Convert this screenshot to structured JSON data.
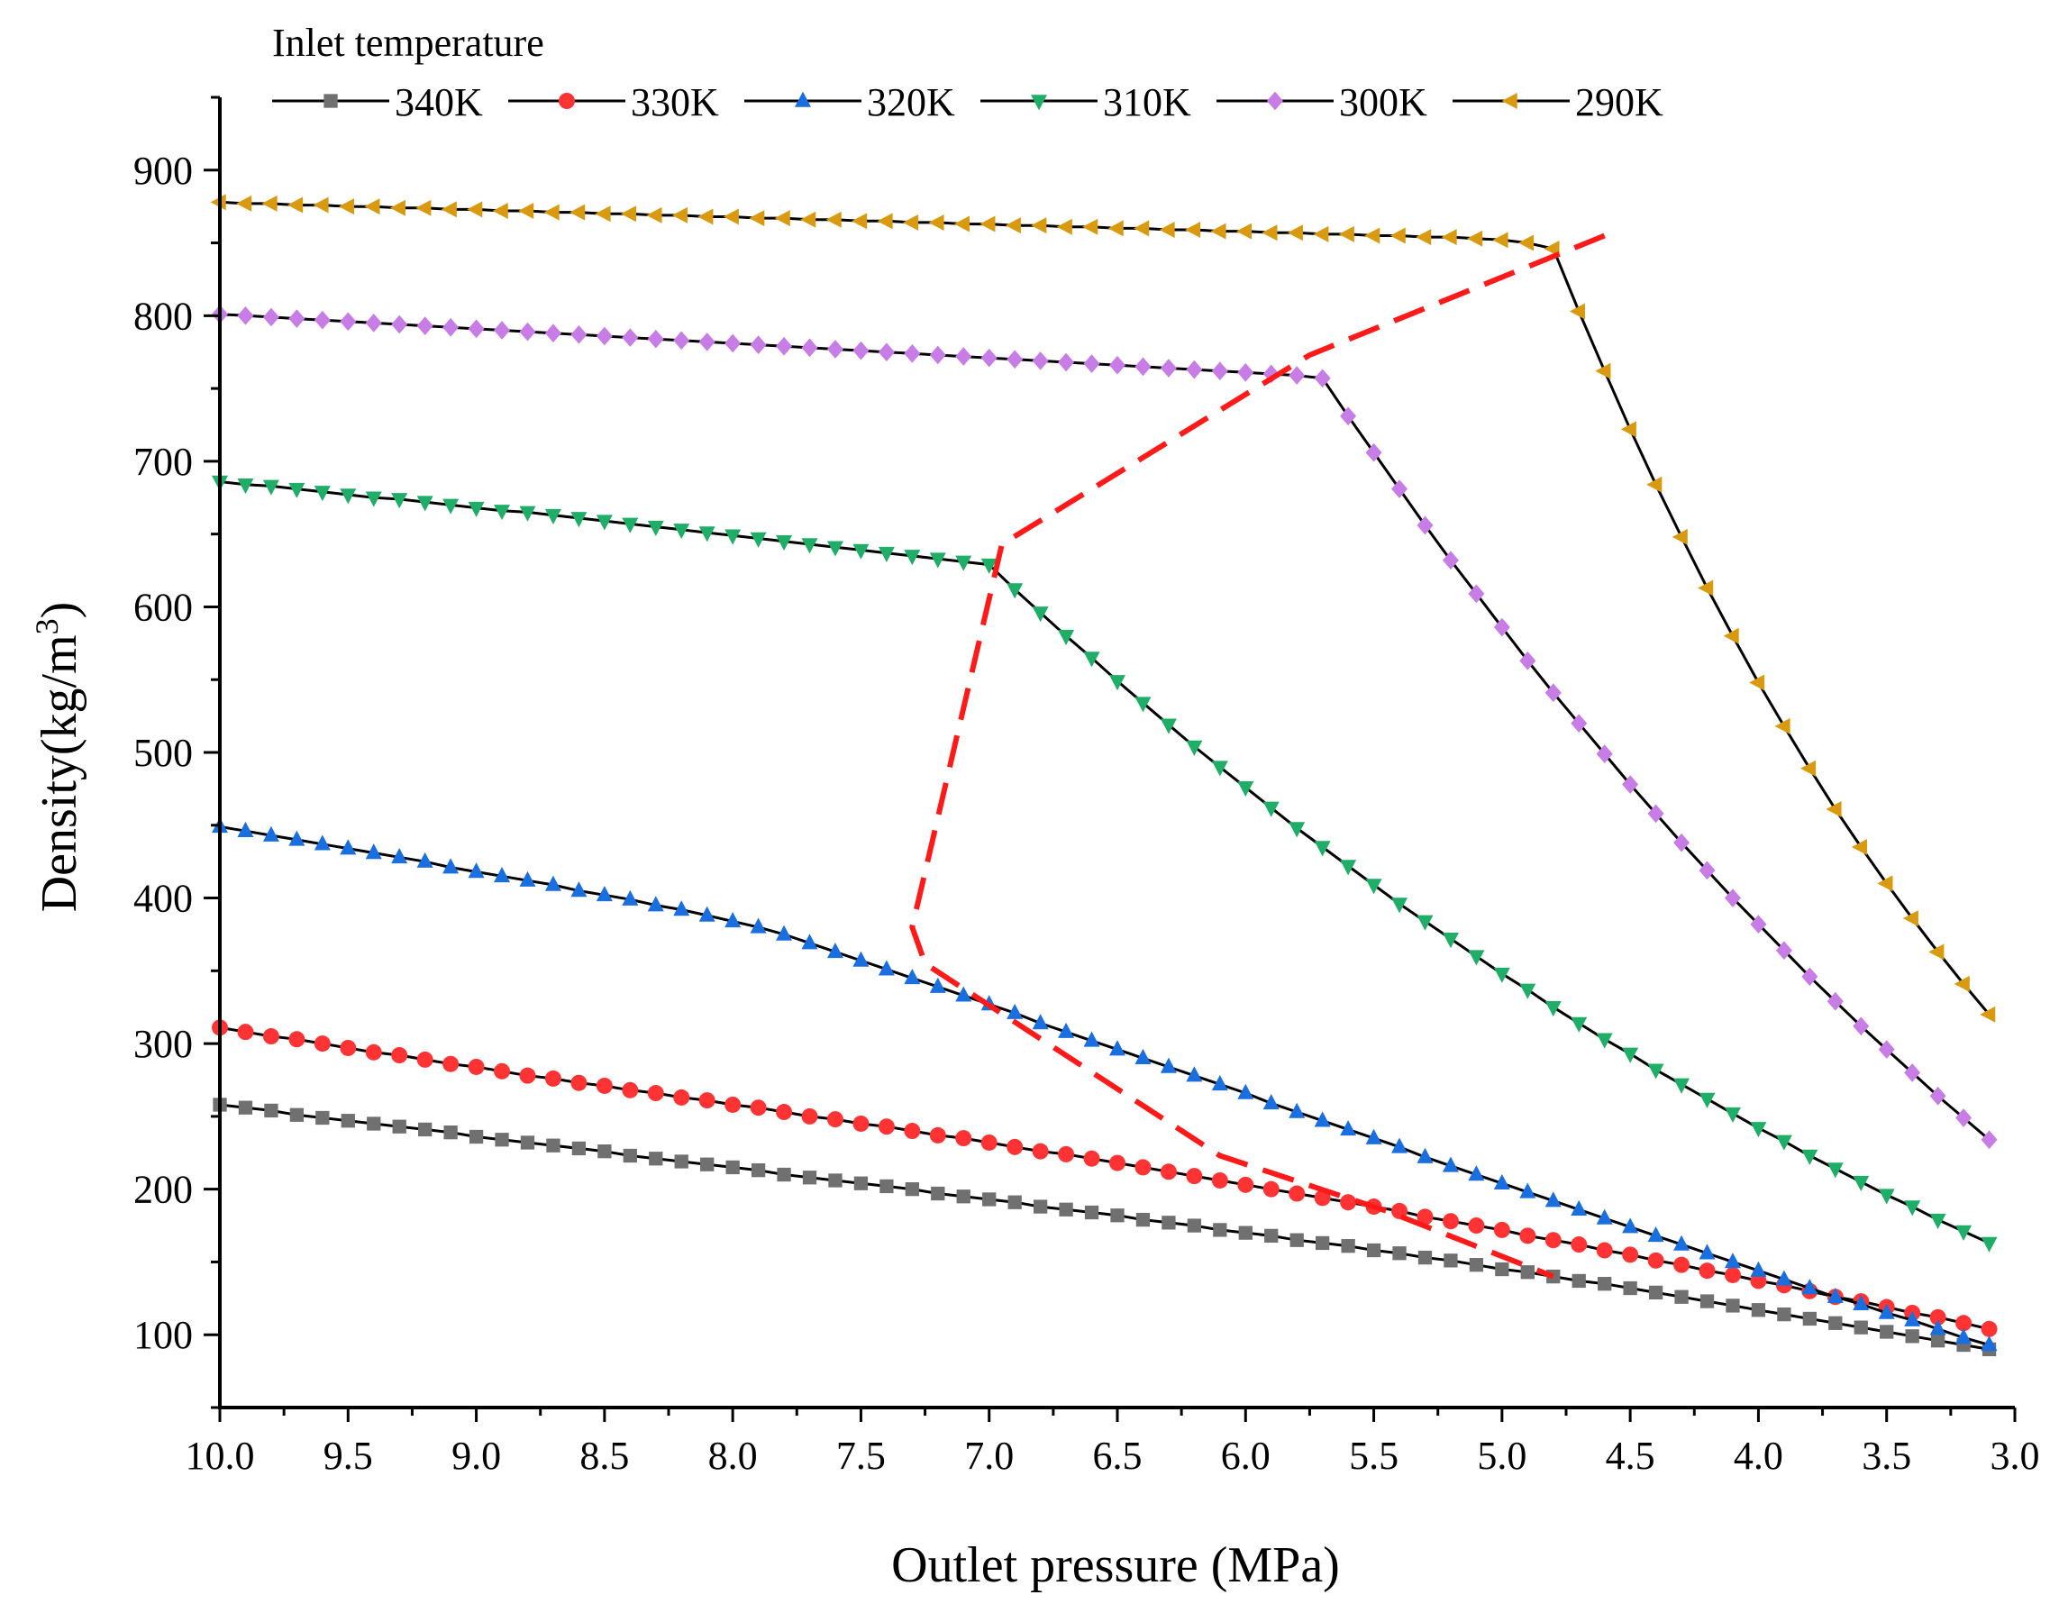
{
  "chart_data": {
    "type": "line",
    "xlabel": "Outlet pressure (MPa)",
    "ylabel_main": "Density(kg/m",
    "ylabel_sup": "3",
    "ylabel_close": ")",
    "xlim": [
      10.0,
      3.0
    ],
    "ylim": [
      50,
      950
    ],
    "x_ticks": [
      10.0,
      9.5,
      9.0,
      8.5,
      8.0,
      7.5,
      7.0,
      6.5,
      6.0,
      5.5,
      5.0,
      4.5,
      4.0,
      3.5,
      3.0
    ],
    "x_tick_labels": [
      "10.0",
      "9.5",
      "9.0",
      "8.5",
      "8.0",
      "7.5",
      "7.0",
      "6.5",
      "6.0",
      "5.5",
      "5.0",
      "4.5",
      "4.0",
      "3.5",
      "3.0"
    ],
    "y_ticks": [
      100,
      200,
      300,
      400,
      500,
      600,
      700,
      800,
      900
    ],
    "y_tick_labels": [
      "100",
      "200",
      "300",
      "400",
      "500",
      "600",
      "700",
      "800",
      "900"
    ],
    "grid": false,
    "legend_title": "Inlet temperature",
    "legend_position": "top",
    "x_start": 10.0,
    "x_step": -0.1,
    "series": [
      {
        "name": "340K",
        "color": "#707070",
        "marker": "square",
        "values": [
          258,
          256,
          254,
          251,
          249,
          247,
          245,
          243,
          241,
          239,
          236,
          234,
          232,
          230,
          228,
          226,
          223,
          221,
          219,
          217,
          215,
          213,
          210,
          208,
          206,
          204,
          202,
          200,
          197,
          195,
          193,
          191,
          188,
          186,
          184,
          182,
          179,
          177,
          175,
          172,
          170,
          168,
          165,
          163,
          161,
          158,
          156,
          153,
          151,
          148,
          145,
          143,
          140,
          137,
          135,
          132,
          129,
          126,
          123,
          120,
          117,
          114,
          111,
          108,
          105,
          102,
          99,
          96,
          93,
          90
        ]
      },
      {
        "name": "330K",
        "color": "#ff3333",
        "marker": "circle",
        "values": [
          311,
          308,
          305,
          303,
          300,
          297,
          294,
          292,
          289,
          286,
          284,
          281,
          278,
          276,
          273,
          271,
          268,
          266,
          263,
          261,
          258,
          256,
          253,
          250,
          248,
          245,
          243,
          240,
          237,
          235,
          232,
          229,
          226,
          224,
          221,
          218,
          215,
          212,
          209,
          206,
          203,
          200,
          197,
          194,
          191,
          188,
          185,
          181,
          178,
          175,
          172,
          168,
          165,
          162,
          158,
          155,
          151,
          148,
          144,
          141,
          137,
          134,
          130,
          126,
          123,
          119,
          115,
          112,
          108,
          104
        ]
      },
      {
        "name": "320K",
        "color": "#1a6fe0",
        "marker": "triangle-up",
        "values": [
          449,
          446,
          443,
          440,
          437,
          434,
          431,
          428,
          425,
          421,
          418,
          415,
          412,
          409,
          405,
          402,
          399,
          395,
          392,
          388,
          384,
          380,
          375,
          369,
          363,
          357,
          351,
          345,
          339,
          333,
          327,
          321,
          314,
          308,
          302,
          296,
          290,
          284,
          278,
          272,
          266,
          259,
          253,
          247,
          241,
          235,
          229,
          222,
          216,
          210,
          204,
          198,
          192,
          186,
          180,
          174,
          168,
          162,
          156,
          150,
          144,
          138,
          132,
          126,
          121,
          115,
          110,
          104,
          98,
          93
        ]
      },
      {
        "name": "310K",
        "color": "#1fae68",
        "marker": "triangle-down",
        "values": [
          686,
          684,
          683,
          681,
          679,
          677,
          675,
          674,
          672,
          670,
          668,
          666,
          665,
          663,
          661,
          659,
          657,
          655,
          653,
          651,
          649,
          647,
          645,
          643,
          641,
          639,
          637,
          635,
          633,
          631,
          629,
          612,
          596,
          580,
          565,
          549,
          534,
          519,
          504,
          490,
          476,
          462,
          448,
          435,
          422,
          409,
          396,
          384,
          372,
          360,
          348,
          337,
          325,
          314,
          303,
          293,
          282,
          272,
          262,
          252,
          242,
          233,
          223,
          214,
          205,
          196,
          188,
          179,
          171,
          163
        ]
      },
      {
        "name": "300K",
        "color": "#c77ce6",
        "marker": "diamond",
        "values": [
          801,
          800,
          799,
          798,
          797,
          796,
          795,
          794,
          793,
          792,
          791,
          790,
          789,
          788,
          787,
          786,
          785,
          784,
          783,
          782,
          781,
          780,
          779,
          778,
          777,
          776,
          775,
          774,
          773,
          772,
          771,
          770,
          769,
          768,
          767,
          766,
          765,
          764,
          763,
          762,
          761,
          760,
          759,
          757,
          731,
          706,
          681,
          656,
          632,
          609,
          586,
          563,
          541,
          520,
          499,
          478,
          458,
          438,
          419,
          400,
          382,
          364,
          346,
          329,
          312,
          296,
          280,
          264,
          249,
          234
        ]
      },
      {
        "name": "290K",
        "color": "#d99a10",
        "marker": "triangle-left",
        "values": [
          878,
          877,
          877,
          876,
          876,
          875,
          875,
          874,
          874,
          873,
          873,
          872,
          872,
          871,
          871,
          870,
          870,
          869,
          869,
          868,
          868,
          867,
          867,
          866,
          866,
          865,
          865,
          864,
          864,
          863,
          863,
          862,
          862,
          861,
          861,
          860,
          860,
          859,
          859,
          858,
          858,
          857,
          857,
          856,
          856,
          855,
          855,
          854,
          854,
          853,
          852,
          850,
          846,
          803,
          762,
          722,
          684,
          648,
          613,
          580,
          548,
          518,
          489,
          461,
          435,
          410,
          386,
          363,
          341,
          320
        ]
      }
    ],
    "annotation": {
      "name": "phase-transition boundary",
      "color": "#ff1a1a",
      "style": "dashed",
      "x": [
        4.6,
        5.75,
        6.95,
        7.3,
        7.25,
        6.1,
        5.45,
        4.8
      ],
      "y": [
        855,
        773,
        643,
        380,
        355,
        223,
        185,
        140
      ]
    }
  }
}
